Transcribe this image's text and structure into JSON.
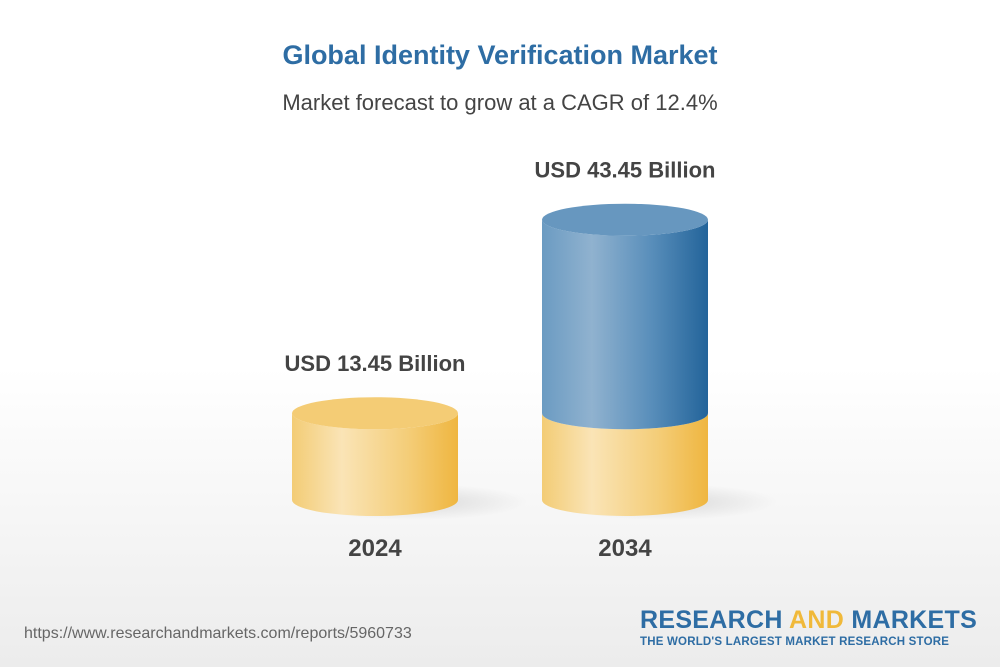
{
  "chart_data": {
    "type": "bar",
    "title": "Global Identity Verification Market",
    "subtitle": "Market forecast to grow at a CAGR of 12.4%",
    "categories": [
      "2024",
      "2034"
    ],
    "values": [
      13.45,
      43.45
    ],
    "data_labels": [
      "USD 13.45 Billion",
      "USD 43.45 Billion"
    ],
    "style": "3d-cylinder",
    "colors": {
      "base": "#f3c45a",
      "growth": "#2e6da4"
    }
  },
  "footer": {
    "url": "https://www.researchandmarkets.com/reports/5960733",
    "logo_part1": "RESEARCH ",
    "logo_part2": "AND",
    "logo_part3": " MARKETS",
    "logo_tagline": "THE WORLD'S LARGEST MARKET RESEARCH STORE"
  }
}
